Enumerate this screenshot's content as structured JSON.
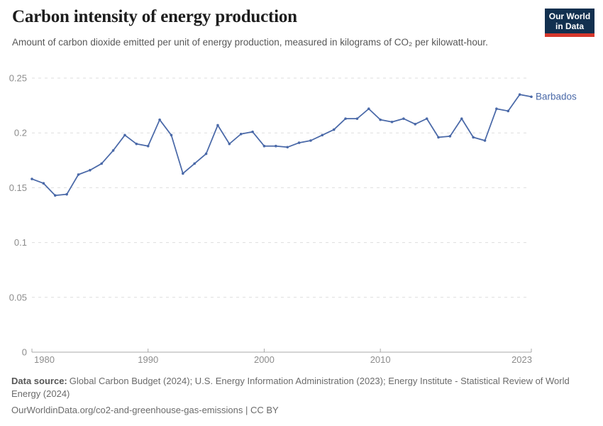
{
  "header": {
    "title": "Carbon intensity of energy production",
    "subtitle": "Amount of carbon dioxide emitted per unit of energy production, measured in kilograms of CO₂ per kilowatt-hour.",
    "logo": {
      "line1": "Our World",
      "line2": "in Data",
      "bg_color": "#12304f",
      "bar_color": "#d6382c"
    }
  },
  "chart_data": {
    "type": "line",
    "title": "Carbon intensity of energy production",
    "xlabel": "",
    "ylabel": "",
    "x": [
      1980,
      1981,
      1982,
      1983,
      1984,
      1985,
      1986,
      1987,
      1988,
      1989,
      1990,
      1991,
      1992,
      1993,
      1994,
      1995,
      1996,
      1997,
      1998,
      1999,
      2000,
      2001,
      2002,
      2003,
      2004,
      2005,
      2006,
      2007,
      2008,
      2009,
      2010,
      2011,
      2012,
      2013,
      2014,
      2015,
      2016,
      2017,
      2018,
      2019,
      2020,
      2021,
      2022,
      2023
    ],
    "series": [
      {
        "name": "Barbados",
        "color": "#4a69a8",
        "values": [
          0.158,
          0.154,
          0.143,
          0.144,
          0.162,
          0.166,
          0.172,
          0.184,
          0.198,
          0.19,
          0.188,
          0.212,
          0.198,
          0.163,
          0.172,
          0.181,
          0.207,
          0.19,
          0.199,
          0.201,
          0.188,
          0.188,
          0.187,
          0.191,
          0.193,
          0.198,
          0.203,
          0.213,
          0.213,
          0.222,
          0.212,
          0.21,
          0.213,
          0.208,
          0.213,
          0.196,
          0.197,
          0.213,
          0.196,
          0.193,
          0.222,
          0.22,
          0.235,
          0.233
        ]
      }
    ],
    "xlim": [
      1980,
      2023
    ],
    "ylim": [
      0,
      0.25
    ],
    "yticks": [
      0,
      0.05,
      0.1,
      0.15,
      0.2,
      0.25
    ],
    "xticks": [
      1980,
      1990,
      2000,
      2010,
      2023
    ],
    "grid": true,
    "grid_style": "dashed",
    "legend_position": "end-of-line",
    "end_label": "Barbados",
    "marker": "dot"
  },
  "footer": {
    "source_label": "Data source:",
    "source_text": "Global Carbon Budget (2024); U.S. Energy Information Administration (2023); Energy Institute - Statistical Review of World Energy (2024)",
    "url_line": "OurWorldinData.org/co2-and-greenhouse-gas-emissions | CC BY"
  }
}
